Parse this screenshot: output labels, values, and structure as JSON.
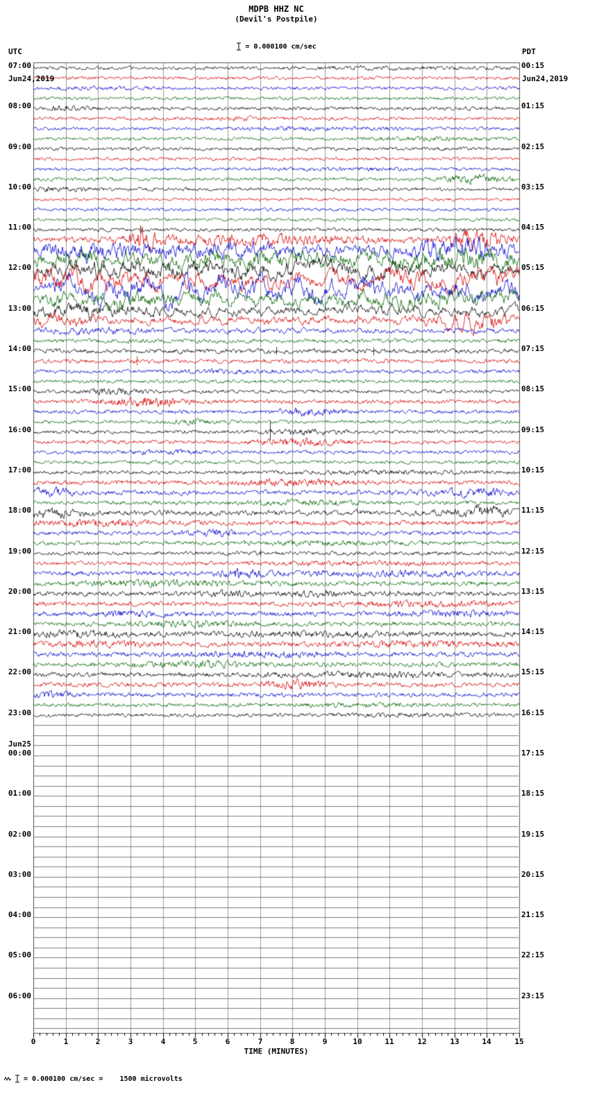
{
  "chart_data": {
    "type": "line",
    "kind": "helicorder-seismogram",
    "station": "MDPB HHZ NC",
    "location": "(Devil's Postpile)",
    "scale": "= 0.000100 cm/sec",
    "footer": "= 0.000100 cm/sec =    1500 microvolts",
    "left_column": {
      "tz": "UTC",
      "date": "Jun24,2019"
    },
    "right_column": {
      "tz": "PDT",
      "date": "Jun24,2019"
    },
    "x_axis": {
      "title": "TIME (MINUTES)",
      "min": 0,
      "max": 15,
      "tick_labels": [
        "0",
        "1",
        "2",
        "3",
        "4",
        "5",
        "6",
        "7",
        "8",
        "9",
        "10",
        "11",
        "12",
        "13",
        "14",
        "15"
      ]
    },
    "trace_colors": [
      "#000000",
      "#d40000",
      "#0000cc",
      "#006400"
    ],
    "grid_color": "#999999",
    "border_color": "#555555",
    "blank_line_color": "#444444",
    "rows": [
      {
        "utc": "07:00",
        "pdt": "00:15",
        "traces": [
          {
            "a": 1.2,
            "b": [
              [
                11,
                2,
                0.4
              ]
            ]
          },
          {
            "a": 1.2
          },
          {
            "a": 1.2,
            "b": [
              [
                2,
                1,
                0.5
              ]
            ]
          },
          {
            "a": 1.2
          }
        ]
      },
      {
        "utc": "08:00",
        "pdt": "01:15",
        "traces": [
          {
            "a": 1.3,
            "b": [
              [
                1,
                0.5,
                0.8
              ]
            ]
          },
          {
            "a": 1.2,
            "b": [
              [
                6,
                1,
                0.5
              ]
            ]
          },
          {
            "a": 1.2,
            "b": [
              [
                9,
                1.5,
                0.5
              ]
            ]
          },
          {
            "a": 1.2,
            "b": [
              [
                12,
                1,
                0.6
              ]
            ]
          }
        ]
      },
      {
        "utc": "09:00",
        "pdt": "02:15",
        "traces": [
          {
            "a": 1.2
          },
          {
            "a": 1.2
          },
          {
            "a": 1.2,
            "b": [
              [
                10,
                1,
                0.5
              ]
            ]
          },
          {
            "a": 1.3,
            "b": [
              [
                13.6,
                0.7,
                1.8
              ]
            ]
          }
        ]
      },
      {
        "utc": "10:00",
        "pdt": "03:15",
        "traces": [
          {
            "a": 1.2,
            "b": [
              [
                0.8,
                0.6,
                0.8
              ]
            ]
          },
          {
            "a": 1.1
          },
          {
            "a": 1.2
          },
          {
            "a": 1.2
          }
        ]
      },
      {
        "utc": "11:00",
        "pdt": "04:15",
        "traces": [
          {
            "a": 1.3,
            "k": [
              [
                3.3,
                6,
                5
              ]
            ]
          },
          {
            "a": 2.2,
            "s": 0.55,
            "b": [
              [
                3.4,
                0.4,
                2.5
              ],
              [
                7,
                2,
                1
              ],
              [
                13.7,
                0.6,
                2.5
              ]
            ]
          },
          {
            "a": 3.5,
            "s": 0.7,
            "b": [
              [
                2,
                1.2,
                1
              ],
              [
                6,
                2,
                0.8
              ],
              [
                13.3,
                1.2,
                1.5
              ]
            ]
          },
          {
            "a": 4,
            "s": 0.75,
            "b": [
              [
                1,
                1,
                0.8
              ],
              [
                7,
                2.5,
                0.8
              ],
              [
                13,
                1.5,
                1.2
              ]
            ]
          }
        ]
      },
      {
        "utc": "12:00",
        "pdt": "05:15",
        "traces": [
          {
            "a": 5.5,
            "s": 0.85,
            "b": [
              [
                2,
                2,
                0.5
              ],
              [
                8,
                3,
                0.4
              ]
            ]
          },
          {
            "a": 6.5,
            "s": 0.86,
            "b": [
              [
                1,
                1.5,
                0.5
              ],
              [
                13,
                1.5,
                0.6
              ]
            ]
          },
          {
            "a": 8,
            "s": 0.88,
            "b": [
              [
                7,
                5,
                0.3
              ]
            ]
          },
          {
            "a": 5.5,
            "s": 0.85,
            "b": [
              [
                3,
                2,
                0.4
              ],
              [
                12,
                2,
                0.5
              ]
            ]
          }
        ]
      },
      {
        "utc": "13:00",
        "pdt": "06:15",
        "traces": [
          {
            "a": 4,
            "s": 0.8,
            "b": [
              [
                1.5,
                1.5,
                0.6
              ]
            ]
          },
          {
            "a": 3.2,
            "s": 0.75,
            "b": [
              [
                0.8,
                0.8,
                0.8
              ],
              [
                13.6,
                0.7,
                1.5
              ]
            ]
          },
          {
            "a": 2,
            "s": 0.65,
            "b": [
              [
                2,
                1,
                0.5
              ]
            ]
          },
          {
            "a": 1.6,
            "s": 0.55
          }
        ]
      },
      {
        "utc": "14:00",
        "pdt": "07:15",
        "traces": [
          {
            "a": 1.8,
            "s": 0.55,
            "k": [
              [
                7.5,
                6,
                5
              ],
              [
                10.5,
                5,
                6
              ]
            ]
          },
          {
            "a": 1.6,
            "s": 0.5,
            "k": [
              [
                3.2,
                7,
                6
              ]
            ]
          },
          {
            "a": 1.4,
            "b": [
              [
                6,
                1,
                0.5
              ]
            ]
          },
          {
            "a": 1.3
          }
        ]
      },
      {
        "utc": "15:00",
        "pdt": "08:15",
        "traces": [
          {
            "a": 1.3,
            "b": [
              [
                2.5,
                0.6,
                1.2
              ]
            ]
          },
          {
            "a": 1.5,
            "b": [
              [
                3.5,
                0.8,
                1.8
              ]
            ]
          },
          {
            "a": 1.4,
            "b": [
              [
                8.5,
                0.7,
                1.3
              ]
            ]
          },
          {
            "a": 1.3,
            "b": [
              [
                5,
                0.5,
                0.8
              ]
            ]
          }
        ]
      },
      {
        "utc": "16:00",
        "pdt": "09:15",
        "traces": [
          {
            "a": 1.3,
            "b": [
              [
                8.3,
                0.8,
                1
              ]
            ],
            "k": [
              [
                7.3,
                16,
                12
              ]
            ]
          },
          {
            "a": 1.4,
            "b": [
              [
                8.2,
                0.9,
                1.3
              ]
            ]
          },
          {
            "a": 1.3,
            "b": [
              [
                4,
                0.8,
                0.6
              ]
            ]
          },
          {
            "a": 1.3
          }
        ]
      },
      {
        "utc": "17:00",
        "pdt": "10:15",
        "traces": [
          {
            "a": 1.4,
            "b": [
              [
                11,
                1.5,
                0.5
              ]
            ]
          },
          {
            "a": 1.6,
            "b": [
              [
                8,
                1.2,
                1.1
              ]
            ]
          },
          {
            "a": 1.8,
            "s": 0.55,
            "b": [
              [
                0.5,
                0.5,
                1.3
              ],
              [
                13.5,
                0.9,
                1.2
              ]
            ]
          },
          {
            "a": 1.5,
            "b": [
              [
                8.5,
                1,
                0.9
              ]
            ]
          }
        ]
      },
      {
        "utc": "18:00",
        "pdt": "11:15",
        "traces": [
          {
            "a": 2.1,
            "s": 0.6,
            "b": [
              [
                0.5,
                0.7,
                1
              ],
              [
                14,
                0.6,
                1.3
              ]
            ]
          },
          {
            "a": 1.8,
            "b": [
              [
                2,
                1,
                0.7
              ]
            ]
          },
          {
            "a": 1.5,
            "b": [
              [
                5.5,
                0.6,
                1.1
              ]
            ]
          },
          {
            "a": 1.5,
            "b": [
              [
                9,
                1.5,
                0.5
              ]
            ]
          }
        ]
      },
      {
        "utc": "19:00",
        "pdt": "12:15",
        "traces": [
          {
            "a": 1.4,
            "k": [
              [
                7,
                5,
                4
              ]
            ]
          },
          {
            "a": 1.4,
            "b": [
              [
                10,
                2,
                0.6
              ]
            ]
          },
          {
            "a": 1.7,
            "b": [
              [
                6.5,
                0.5,
                1.4
              ],
              [
                11,
                2,
                0.6
              ]
            ]
          },
          {
            "a": 1.7,
            "b": [
              [
                4,
                1.5,
                0.8
              ]
            ]
          }
        ]
      },
      {
        "utc": "20:00",
        "pdt": "13:15",
        "traces": [
          {
            "a": 1.7,
            "b": [
              [
                6,
                0.4,
                1
              ],
              [
                9,
                1,
                0.6
              ]
            ]
          },
          {
            "a": 1.7,
            "b": [
              [
                12,
                1.5,
                0.6
              ]
            ]
          },
          {
            "a": 1.7,
            "b": [
              [
                3,
                1,
                0.6
              ],
              [
                13,
                1,
                0.8
              ]
            ]
          },
          {
            "a": 1.7,
            "b": [
              [
                5,
                1,
                0.7
              ]
            ]
          }
        ]
      },
      {
        "utc": "21:00",
        "pdt": "14:15",
        "traces": [
          {
            "a": 1.8,
            "b": [
              [
                1.5,
                1,
                0.9
              ],
              [
                9,
                2,
                0.5
              ]
            ]
          },
          {
            "a": 1.8,
            "b": [
              [
                2,
                1,
                0.7
              ],
              [
                12,
                1.5,
                0.6
              ]
            ]
          },
          {
            "a": 1.7,
            "b": [
              [
                7,
                1.5,
                0.6
              ]
            ]
          },
          {
            "a": 1.7,
            "b": [
              [
                5,
                1.2,
                0.8
              ]
            ]
          }
        ]
      },
      {
        "utc": "22:00",
        "pdt": "15:15",
        "traces": [
          {
            "a": 1.7,
            "b": [
              [
                11,
                2,
                0.5
              ]
            ]
          },
          {
            "a": 1.7,
            "b": [
              [
                8,
                0.6,
                1.4
              ]
            ]
          },
          {
            "a": 1.6,
            "b": [
              [
                0.5,
                0.5,
                1.1
              ]
            ]
          },
          {
            "a": 1.4,
            "b": [
              [
                10,
                1.5,
                0.5
              ]
            ]
          }
        ]
      },
      {
        "utc": "23:00",
        "pdt": "16:15",
        "traces": [
          {
            "a": 1.3,
            "b": [
              [
                11.5,
                1.5,
                0.5
              ]
            ]
          },
          null,
          null,
          null
        ]
      },
      {
        "utc": "00:00",
        "pdt": "17:15",
        "date_note": "Jun25",
        "traces": [
          null,
          null,
          null,
          null
        ]
      },
      {
        "utc": "01:00",
        "pdt": "18:15",
        "traces": [
          null,
          null,
          null,
          null
        ]
      },
      {
        "utc": "02:00",
        "pdt": "19:15",
        "traces": [
          null,
          null,
          null,
          null
        ]
      },
      {
        "utc": "03:00",
        "pdt": "20:15",
        "traces": [
          null,
          null,
          null,
          null
        ]
      },
      {
        "utc": "04:00",
        "pdt": "21:15",
        "traces": [
          null,
          null,
          null,
          null
        ]
      },
      {
        "utc": "05:00",
        "pdt": "22:15",
        "traces": [
          null,
          null,
          null,
          null
        ]
      },
      {
        "utc": "06:00",
        "pdt": "23:15",
        "traces": [
          null,
          null,
          null,
          null
        ]
      }
    ]
  }
}
